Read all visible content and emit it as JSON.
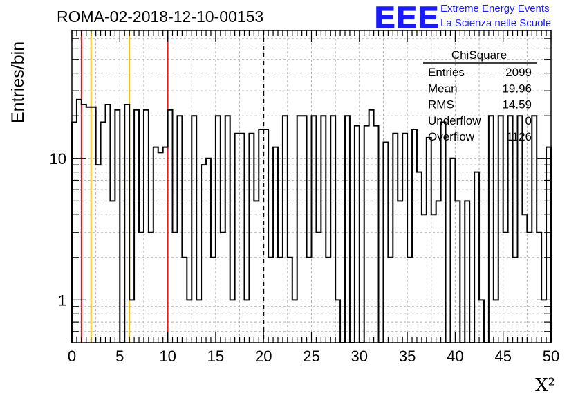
{
  "header": {
    "title": "ROMA-02-2018-12-10-00153",
    "logo_mark": "EEE",
    "logo_line1": "Extreme Energy Events",
    "logo_line2": "La Scienza nelle Scuole"
  },
  "stats": {
    "title": "ChiSquare",
    "rows": [
      {
        "label": "Entries",
        "value": "2099"
      },
      {
        "label": "Mean",
        "value": "19.96"
      },
      {
        "label": "RMS",
        "value": "14.59"
      },
      {
        "label": "Underflow",
        "value": "0"
      },
      {
        "label": "Overflow",
        "value": "1126"
      }
    ]
  },
  "colors": {
    "histogram": "#000000",
    "red_line": "#e8151b",
    "yellow_line": "#f2c200",
    "dashed_line": "#000000",
    "grid": "#b0b0b0",
    "logo": "#1a1aff"
  },
  "chart_data": {
    "type": "bar",
    "style": "step-histogram",
    "xlabel": "X²",
    "ylabel": "Entries/bin",
    "xlim": [
      0,
      50
    ],
    "ylim": [
      0.5,
      80
    ],
    "yscale": "log",
    "grid": true,
    "bin_width": 0.5,
    "x_ticks": [
      0,
      5,
      10,
      15,
      20,
      25,
      30,
      35,
      40,
      45,
      50
    ],
    "x_tick_labels": [
      "0",
      "5",
      "10",
      "15",
      "20",
      "25",
      "30",
      "35",
      "40",
      "45",
      "50"
    ],
    "y_ticks": [
      1,
      10
    ],
    "y_tick_labels": [
      "1",
      "10"
    ],
    "vertical_lines": [
      {
        "x": 1,
        "color": "red",
        "style": "solid"
      },
      {
        "x": 2,
        "color": "yellow",
        "style": "solid"
      },
      {
        "x": 6,
        "color": "yellow",
        "style": "solid"
      },
      {
        "x": 10,
        "color": "red",
        "style": "solid"
      },
      {
        "x": 20,
        "color": "black",
        "style": "dashed"
      }
    ],
    "values": [
      18,
      26,
      24,
      23,
      23,
      9,
      18,
      24,
      5,
      22,
      0,
      24,
      1,
      22,
      3,
      22,
      3,
      12,
      11,
      12,
      22,
      3,
      20,
      2,
      1,
      20,
      1,
      9,
      10,
      2,
      20,
      3,
      20,
      1,
      15,
      15,
      1,
      15,
      5,
      16,
      16,
      2,
      12,
      2,
      20,
      2,
      1,
      20,
      20,
      2,
      20,
      3,
      20,
      2,
      20,
      1,
      0,
      20,
      0,
      17,
      0,
      17,
      22,
      17,
      0,
      13,
      2,
      15,
      5,
      15,
      2,
      16,
      8,
      4,
      14,
      4,
      5,
      18,
      0,
      10,
      5,
      0,
      5,
      0,
      8,
      1,
      0,
      20,
      1,
      20,
      3,
      20,
      2,
      20,
      4,
      3,
      20,
      3,
      1,
      12
    ]
  }
}
